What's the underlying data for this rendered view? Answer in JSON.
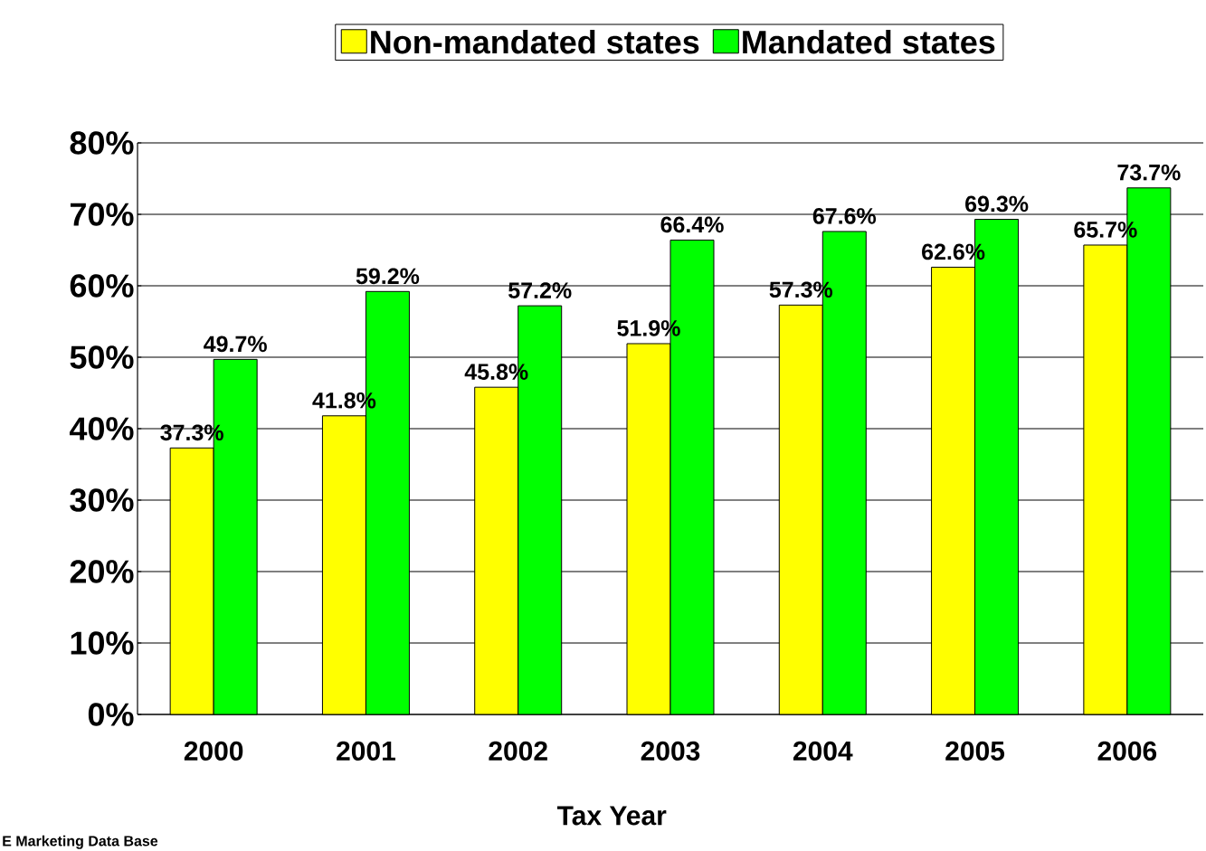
{
  "chart_data": {
    "type": "bar",
    "xlabel": "Tax Year",
    "categories": [
      "2000",
      "2001",
      "2002",
      "2003",
      "2004",
      "2005",
      "2006"
    ],
    "series": [
      {
        "name": "Non-mandated states",
        "color": "#ffff00",
        "values": [
          37.3,
          41.8,
          45.8,
          51.9,
          57.3,
          62.6,
          65.7
        ],
        "value_labels": [
          "37.3%",
          "41.8%",
          "45.8%",
          "51.9%",
          "57.3%",
          "62.6%",
          "65.7%"
        ]
      },
      {
        "name": "Mandated states",
        "color": "#00ff00",
        "values": [
          49.7,
          59.2,
          57.2,
          66.4,
          67.6,
          69.3,
          73.7
        ],
        "value_labels": [
          "49.7%",
          "59.2%",
          "57.2%",
          "66.4%",
          "67.6%",
          "69.3%",
          "73.7%"
        ]
      }
    ],
    "ylim": [
      0,
      80
    ],
    "yticks": [
      {
        "value": 0,
        "label": "0%"
      },
      {
        "value": 10,
        "label": "10%"
      },
      {
        "value": 20,
        "label": "20%"
      },
      {
        "value": 30,
        "label": "30%"
      },
      {
        "value": 40,
        "label": "40%"
      },
      {
        "value": 50,
        "label": "50%"
      },
      {
        "value": 60,
        "label": "60%"
      },
      {
        "value": 70,
        "label": "70%"
      },
      {
        "value": 80,
        "label": "80%"
      }
    ],
    "grid": "y",
    "legend": "top",
    "annotations": [
      "E Marketing Data Base"
    ]
  }
}
